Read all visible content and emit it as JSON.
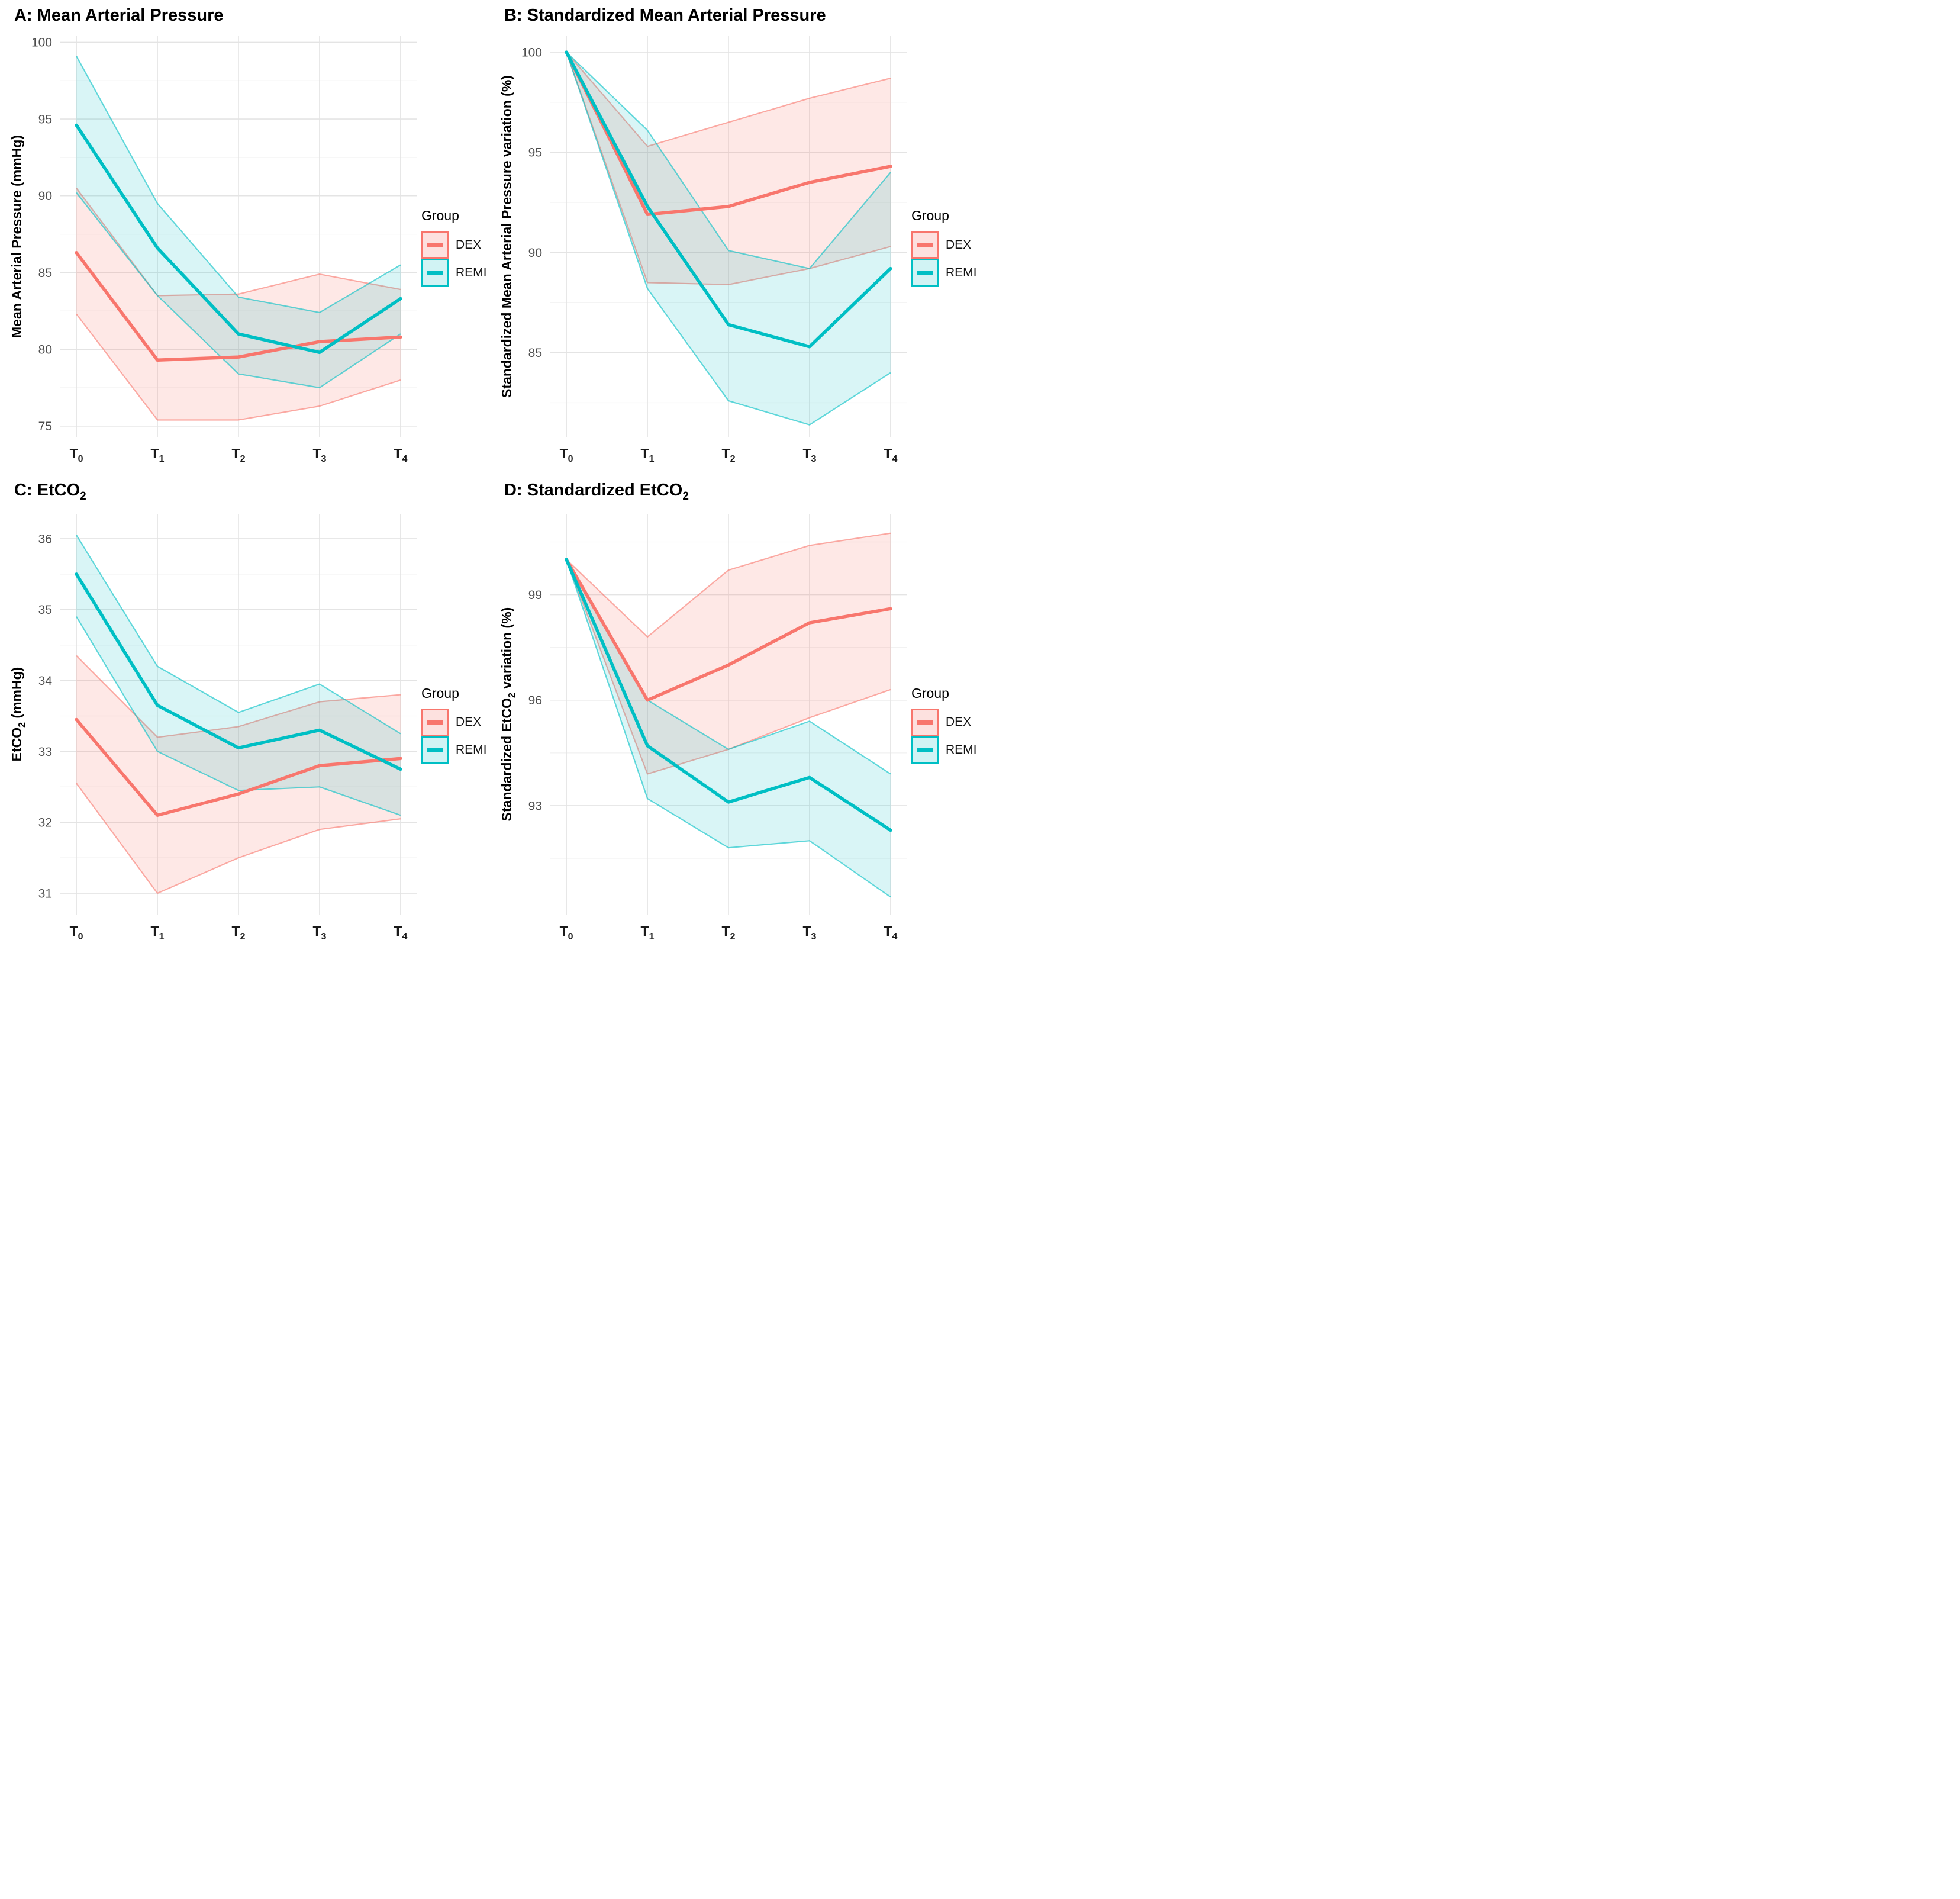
{
  "legend": {
    "title": "Group",
    "items": [
      {
        "label": "DEX"
      },
      {
        "label": "REMI"
      }
    ]
  },
  "colors": {
    "dex": "#F8766D",
    "remi": "#00BFC4",
    "dex_fill": "rgba(248,118,109,0.17)",
    "remi_fill": "rgba(0,191,196,0.15)",
    "dex_key_fill": "rgba(248,118,109,0.22)",
    "remi_key_fill": "rgba(0,191,196,0.18)",
    "grid_major": "#E4E4E4",
    "grid_minor": "#F2F2F2",
    "y_tick_label": "#4D4D4D",
    "x_tick_label": "#1A1A1A",
    "title_color": "#000000"
  },
  "chart_data": [
    {
      "type": "line",
      "panel": "A",
      "title": "A: Mean Arterial Pressure",
      "ylabel": "Mean Arterial Pressure (mmHg)",
      "xlabel": "",
      "x_categories": [
        "T~0~",
        "T~1~",
        "T~2~",
        "T~3~",
        "T~4~"
      ],
      "ylim": [
        74.3,
        100.4
      ],
      "yticks": [
        75,
        80,
        85,
        90,
        95,
        100
      ],
      "yticks_minor": [
        77.5,
        82.5,
        87.5,
        92.5,
        97.5
      ],
      "grid": true,
      "legend_position": "right",
      "series": [
        {
          "name": "DEX",
          "color_key": "dex",
          "mean": [
            86.3,
            79.3,
            79.5,
            80.5,
            80.8
          ],
          "upper": [
            90.5,
            83.5,
            83.6,
            84.9,
            83.9
          ],
          "lower": [
            82.3,
            75.4,
            75.4,
            76.3,
            78.0
          ]
        },
        {
          "name": "REMI",
          "color_key": "remi",
          "mean": [
            94.6,
            86.6,
            81.0,
            79.8,
            83.3
          ],
          "upper": [
            99.1,
            89.5,
            83.4,
            82.4,
            85.5
          ],
          "lower": [
            90.2,
            83.5,
            78.4,
            77.5,
            81.0
          ]
        }
      ]
    },
    {
      "type": "line",
      "panel": "B",
      "title": "B: Standardized Mean Arterial Pressure",
      "ylabel": "Standardized Mean Arterial Pressure variation (%)",
      "xlabel": "",
      "x_categories": [
        "T~0~",
        "T~1~",
        "T~2~",
        "T~3~",
        "T~4~"
      ],
      "ylim": [
        80.8,
        100.8
      ],
      "yticks": [
        85,
        90,
        95,
        100
      ],
      "yticks_minor": [
        82.5,
        87.5,
        92.5,
        97.5
      ],
      "grid": true,
      "legend_position": "right",
      "series": [
        {
          "name": "DEX",
          "color_key": "dex",
          "mean": [
            100,
            91.9,
            92.3,
            93.5,
            94.3
          ],
          "upper": [
            100,
            95.3,
            96.5,
            97.7,
            98.7
          ],
          "lower": [
            100,
            88.5,
            88.4,
            89.2,
            90.3
          ]
        },
        {
          "name": "REMI",
          "color_key": "remi",
          "mean": [
            100,
            92.3,
            86.4,
            85.3,
            89.2
          ],
          "upper": [
            100,
            96.1,
            90.1,
            89.2,
            94.0
          ],
          "lower": [
            100,
            88.2,
            82.6,
            81.4,
            84.0
          ]
        }
      ]
    },
    {
      "type": "line",
      "panel": "C",
      "title": "C: EtCO~2~",
      "ylabel": "EtCO~2~ (mmHg)",
      "xlabel": "",
      "x_categories": [
        "T~0~",
        "T~1~",
        "T~2~",
        "T~3~",
        "T~4~"
      ],
      "ylim": [
        30.7,
        36.35
      ],
      "yticks": [
        31,
        32,
        33,
        34,
        35,
        36
      ],
      "yticks_minor": [
        31.5,
        32.5,
        33.5,
        34.5,
        35.5
      ],
      "grid": true,
      "legend_position": "right",
      "series": [
        {
          "name": "DEX",
          "color_key": "dex",
          "mean": [
            33.45,
            32.1,
            32.4,
            32.8,
            32.9
          ],
          "upper": [
            34.35,
            33.2,
            33.35,
            33.7,
            33.8
          ],
          "lower": [
            32.55,
            31.0,
            31.5,
            31.9,
            32.05
          ]
        },
        {
          "name": "REMI",
          "color_key": "remi",
          "mean": [
            35.5,
            33.65,
            33.05,
            33.3,
            32.75
          ],
          "upper": [
            36.05,
            34.2,
            33.55,
            33.95,
            33.25
          ],
          "lower": [
            34.9,
            33.0,
            32.45,
            32.5,
            32.1
          ]
        }
      ]
    },
    {
      "type": "line",
      "panel": "D",
      "title": "D: Standardized EtCO~2~",
      "ylabel": "Standardized EtCO~2~ variation (%)",
      "xlabel": "",
      "x_categories": [
        "T~0~",
        "T~1~",
        "T~2~",
        "T~3~",
        "T~4~"
      ],
      "ylim": [
        89.9,
        101.3
      ],
      "yticks": [
        93,
        96,
        99
      ],
      "yticks_minor": [
        91.5,
        94.5,
        97.5,
        100.5
      ],
      "grid": true,
      "legend_position": "right",
      "series": [
        {
          "name": "DEX",
          "color_key": "dex",
          "mean": [
            100,
            96.0,
            97.0,
            98.2,
            98.6
          ],
          "upper": [
            100,
            97.8,
            99.7,
            100.4,
            100.75
          ],
          "lower": [
            100,
            93.9,
            94.6,
            95.5,
            96.3
          ]
        },
        {
          "name": "REMI",
          "color_key": "remi",
          "mean": [
            100,
            94.7,
            93.1,
            93.8,
            92.3
          ],
          "upper": [
            100,
            96.0,
            94.6,
            95.4,
            93.9
          ],
          "lower": [
            100,
            93.2,
            91.8,
            92.0,
            90.4
          ]
        }
      ]
    }
  ]
}
